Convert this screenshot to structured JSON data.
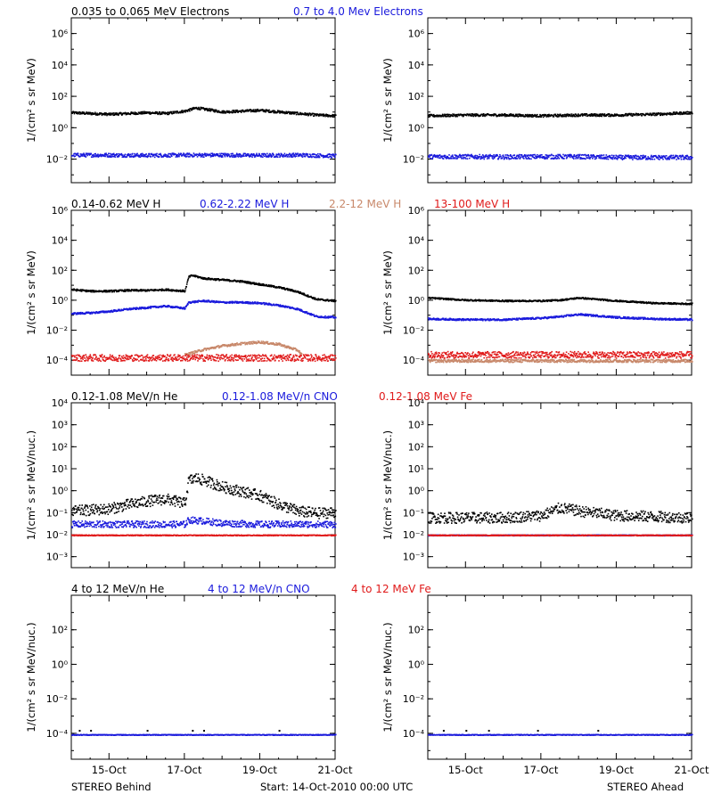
{
  "colors": {
    "black": "#000000",
    "blue": "#1a1adc",
    "tan": "#c8886a",
    "red": "#e01a1a"
  },
  "footer": {
    "left": "STEREO Behind",
    "center": "Start: 14-Oct-2010 00:00 UTC",
    "right": "STEREO Ahead"
  },
  "x_ticks": [
    "15-Oct",
    "17-Oct",
    "19-Oct",
    "21-Oct"
  ],
  "chart_data": [
    {
      "type": "scatter",
      "row": 1,
      "legend": [
        {
          "label": "0.035 to 0.065 MeV Electrons",
          "color": "black"
        },
        {
          "label": "0.7 to 4.0 Mev Electrons",
          "color": "blue"
        }
      ],
      "ylabel": "1/(cm² s sr MeV)",
      "yticks": [
        "10⁶",
        "10⁴",
        "10²",
        "10⁰",
        "10⁻²"
      ],
      "ylim_log10": [
        -3.5,
        7
      ],
      "panels": [
        {
          "spacecraft": "STEREO Behind",
          "series": [
            {
              "color": "black",
              "x_days": [
                0,
                0.5,
                1,
                1.5,
                2,
                2.5,
                3,
                3.3,
                3.6,
                4,
                4.5,
                5,
                5.5,
                6,
                6.5,
                7
              ],
              "log10_flux": [
                1.0,
                0.95,
                0.9,
                0.95,
                1.0,
                0.95,
                1.1,
                1.3,
                1.2,
                1.05,
                1.1,
                1.15,
                1.05,
                0.95,
                0.85,
                0.8
              ],
              "scatter": 0.08
            },
            {
              "color": "blue",
              "x_days": [
                0,
                1,
                2,
                3,
                4,
                5,
                6,
                7
              ],
              "log10_flux": [
                -1.7,
                -1.7,
                -1.72,
                -1.7,
                -1.7,
                -1.72,
                -1.7,
                -1.75
              ],
              "scatter": 0.12
            }
          ]
        },
        {
          "spacecraft": "STEREO Ahead",
          "series": [
            {
              "color": "black",
              "x_days": [
                0,
                1,
                2,
                3,
                4,
                5,
                6,
                7
              ],
              "log10_flux": [
                0.8,
                0.85,
                0.85,
                0.8,
                0.85,
                0.85,
                0.9,
                1.0
              ],
              "scatter": 0.08
            },
            {
              "color": "blue",
              "x_days": [
                0,
                1,
                2,
                3,
                4,
                5,
                6,
                7
              ],
              "log10_flux": [
                -1.8,
                -1.8,
                -1.82,
                -1.8,
                -1.8,
                -1.85,
                -1.85,
                -1.85
              ],
              "scatter": 0.14
            }
          ]
        }
      ]
    },
    {
      "type": "scatter",
      "row": 2,
      "legend": [
        {
          "label": "0.14-0.62 MeV H",
          "color": "black"
        },
        {
          "label": "0.62-2.22 MeV H",
          "color": "blue"
        },
        {
          "label": "2.2-12 MeV H",
          "color": "tan"
        },
        {
          "label": "13-100 MeV H",
          "color": "red"
        }
      ],
      "ylabel": "1/(cm² s sr MeV)",
      "yticks": [
        "10⁶",
        "10⁴",
        "10²",
        "10⁰",
        "10⁻²",
        "10⁻⁴"
      ],
      "ylim_log10": [
        -5,
        6
      ],
      "panels": [
        {
          "spacecraft": "STEREO Behind",
          "series": [
            {
              "color": "black",
              "x_days": [
                0,
                0.5,
                1,
                1.5,
                2,
                2.5,
                3,
                3.1,
                3.2,
                3.5,
                4,
                4.5,
                5,
                5.5,
                6,
                6.5,
                7
              ],
              "log10_flux": [
                0.75,
                0.65,
                0.65,
                0.7,
                0.7,
                0.75,
                0.65,
                1.6,
                1.7,
                1.5,
                1.4,
                1.3,
                1.1,
                0.9,
                0.6,
                0.1,
                0.0
              ],
              "scatter": 0.06
            },
            {
              "color": "blue",
              "x_days": [
                0,
                0.5,
                1,
                1.5,
                2,
                2.5,
                3,
                3.1,
                3.5,
                4,
                4.5,
                5,
                5.5,
                6,
                6.5,
                7
              ],
              "log10_flux": [
                -0.85,
                -0.8,
                -0.7,
                -0.55,
                -0.45,
                -0.35,
                -0.5,
                -0.1,
                0.0,
                -0.1,
                -0.1,
                -0.15,
                -0.3,
                -0.55,
                -1.05,
                -1.1
              ],
              "scatter": 0.06
            },
            {
              "color": "tan",
              "x_days": [
                3.0,
                3.5,
                4.0,
                4.5,
                5.0,
                5.5,
                6.0,
                6.1
              ],
              "log10_flux": [
                -3.6,
                -3.25,
                -3.0,
                -2.85,
                -2.75,
                -2.9,
                -3.3,
                -3.6
              ],
              "scatter": 0.08
            },
            {
              "color": "red",
              "x_days": [
                0,
                1,
                2,
                3,
                4,
                5,
                6,
                7
              ],
              "log10_flux": [
                -3.8,
                -3.8,
                -3.8,
                -3.8,
                -3.8,
                -3.8,
                -3.8,
                -3.8
              ],
              "scatter": 0.22
            }
          ]
        },
        {
          "spacecraft": "STEREO Ahead",
          "series": [
            {
              "color": "black",
              "x_days": [
                0,
                1,
                2,
                3,
                3.5,
                4,
                4.5,
                5,
                6,
                7
              ],
              "log10_flux": [
                0.2,
                0.05,
                0.0,
                0.0,
                0.05,
                0.2,
                0.1,
                0.0,
                -0.15,
                -0.2
              ],
              "scatter": 0.05
            },
            {
              "color": "blue",
              "x_days": [
                0,
                1,
                2,
                3,
                3.5,
                4,
                4.5,
                5,
                6,
                7
              ],
              "log10_flux": [
                -1.2,
                -1.25,
                -1.25,
                -1.15,
                -1.05,
                -0.9,
                -1.0,
                -1.1,
                -1.2,
                -1.25
              ],
              "scatter": 0.06
            },
            {
              "color": "tan",
              "x_days": [
                0,
                7
              ],
              "log10_flux": [
                -4.0,
                -4.0
              ],
              "scatter": 0.1
            },
            {
              "color": "red",
              "x_days": [
                0,
                1,
                2,
                3,
                4,
                5,
                6,
                7
              ],
              "log10_flux": [
                -3.6,
                -3.6,
                -3.6,
                -3.6,
                -3.6,
                -3.6,
                -3.6,
                -3.6
              ],
              "scatter": 0.22
            }
          ]
        }
      ]
    },
    {
      "type": "scatter",
      "row": 3,
      "legend": [
        {
          "label": "0.12-1.08 MeV/n He",
          "color": "black"
        },
        {
          "label": "0.12-1.08 MeV/n CNO",
          "color": "blue"
        },
        {
          "label": "0.12-1.08 MeV Fe",
          "color": "red"
        }
      ],
      "ylabel": "1/(cm² s sr MeV/nuc.)",
      "yticks": [
        "10⁴",
        "10³",
        "10²",
        "10¹",
        "10⁰",
        "10⁻¹",
        "10⁻²",
        "10⁻³"
      ],
      "ylim_log10": [
        -3.5,
        4
      ],
      "panels": [
        {
          "spacecraft": "STEREO Behind",
          "series": [
            {
              "color": "black",
              "x_days": [
                0,
                0.5,
                1,
                1.5,
                2,
                2.5,
                3,
                3.1,
                3.3,
                3.6,
                4,
                4.5,
                5,
                5.5,
                6,
                6.5,
                7
              ],
              "log10_flux": [
                -0.9,
                -0.85,
                -0.8,
                -0.6,
                -0.45,
                -0.35,
                -0.55,
                0.5,
                0.6,
                0.45,
                0.2,
                0.0,
                -0.2,
                -0.6,
                -0.9,
                -1.0,
                -0.95
              ],
              "scatter": 0.25
            },
            {
              "color": "blue",
              "x_days": [
                0,
                1,
                2,
                3,
                3.1,
                3.5,
                4,
                5,
                6,
                7
              ],
              "log10_flux": [
                -1.5,
                -1.5,
                -1.5,
                -1.5,
                -1.3,
                -1.35,
                -1.45,
                -1.5,
                -1.5,
                -1.5
              ],
              "scatter": 0.15
            },
            {
              "color": "red",
              "x_days": [
                0,
                7
              ],
              "log10_flux": [
                -2.0,
                -2.0
              ],
              "scatter": 0.02
            }
          ]
        },
        {
          "spacecraft": "STEREO Ahead",
          "series": [
            {
              "color": "black",
              "x_days": [
                0,
                1,
                2,
                3,
                3.5,
                4,
                5,
                6,
                7
              ],
              "log10_flux": [
                -1.2,
                -1.2,
                -1.2,
                -1.1,
                -0.75,
                -0.9,
                -1.1,
                -1.15,
                -1.2
              ],
              "scatter": 0.25
            },
            {
              "color": "blue",
              "x_days": [
                0,
                7
              ],
              "log10_flux": [
                -2.0,
                -2.0
              ],
              "scatter": 0.02
            },
            {
              "color": "red",
              "x_days": [
                0,
                7
              ],
              "log10_flux": [
                -2.0,
                -2.0
              ],
              "scatter": 0.02
            }
          ]
        }
      ]
    },
    {
      "type": "scatter",
      "row": 4,
      "legend": [
        {
          "label": "4 to 12 MeV/n He",
          "color": "black"
        },
        {
          "label": "4 to 12 MeV/n CNO",
          "color": "blue"
        },
        {
          "label": "4 to 12 MeV Fe",
          "color": "red"
        }
      ],
      "ylabel": "1/(cm² s sr MeV/nuc.)",
      "yticks": [
        "10²",
        "10⁰",
        "10⁻²",
        "10⁻⁴"
      ],
      "ylim_log10": [
        -5.5,
        4
      ],
      "panels": [
        {
          "spacecraft": "STEREO Behind",
          "series": [
            {
              "color": "blue",
              "x_days": [
                0,
                7
              ],
              "log10_flux": [
                -4.05,
                -4.05
              ],
              "scatter": 0.02
            },
            {
              "color": "black",
              "x_days": [
                0.2,
                0.5,
                2.0,
                3.2,
                3.5,
                5.5
              ],
              "log10_flux": [
                -3.8,
                -3.8,
                -3.8,
                -3.8,
                -3.8,
                -3.8
              ],
              "scatter": 0.0
            }
          ]
        },
        {
          "spacecraft": "STEREO Ahead",
          "series": [
            {
              "color": "blue",
              "x_days": [
                0,
                7
              ],
              "log10_flux": [
                -4.05,
                -4.05
              ],
              "scatter": 0.02
            },
            {
              "color": "black",
              "x_days": [
                0.4,
                1.0,
                1.6,
                2.9,
                4.5
              ],
              "log10_flux": [
                -3.8,
                -3.8,
                -3.8,
                -3.8,
                -3.8
              ],
              "scatter": 0.0
            }
          ]
        }
      ]
    }
  ]
}
